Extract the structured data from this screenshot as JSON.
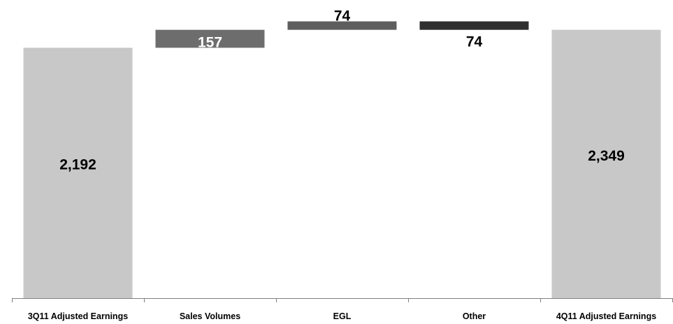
{
  "chart_data": {
    "type": "bar",
    "subtype": "waterfall",
    "categories": [
      "3Q11 Adjusted Earnings",
      "Sales Volumes",
      "EGL",
      "Other",
      "4Q11 Adjusted Earnings"
    ],
    "values": [
      2192,
      157,
      74,
      -74,
      2349
    ],
    "value_labels": [
      "2,192",
      "157",
      "74",
      "74",
      "2,349"
    ],
    "bar_kinds": [
      "total",
      "delta",
      "delta",
      "delta",
      "total"
    ],
    "title": "",
    "xlabel": "",
    "ylabel": "",
    "grid": false,
    "legend": "none",
    "colors": {
      "total": "#c8c8c8",
      "sales_volumes": "#6d6d6d",
      "egl": "#5e5e5e",
      "other": "#2f2f2f",
      "axis": "#808080"
    }
  }
}
